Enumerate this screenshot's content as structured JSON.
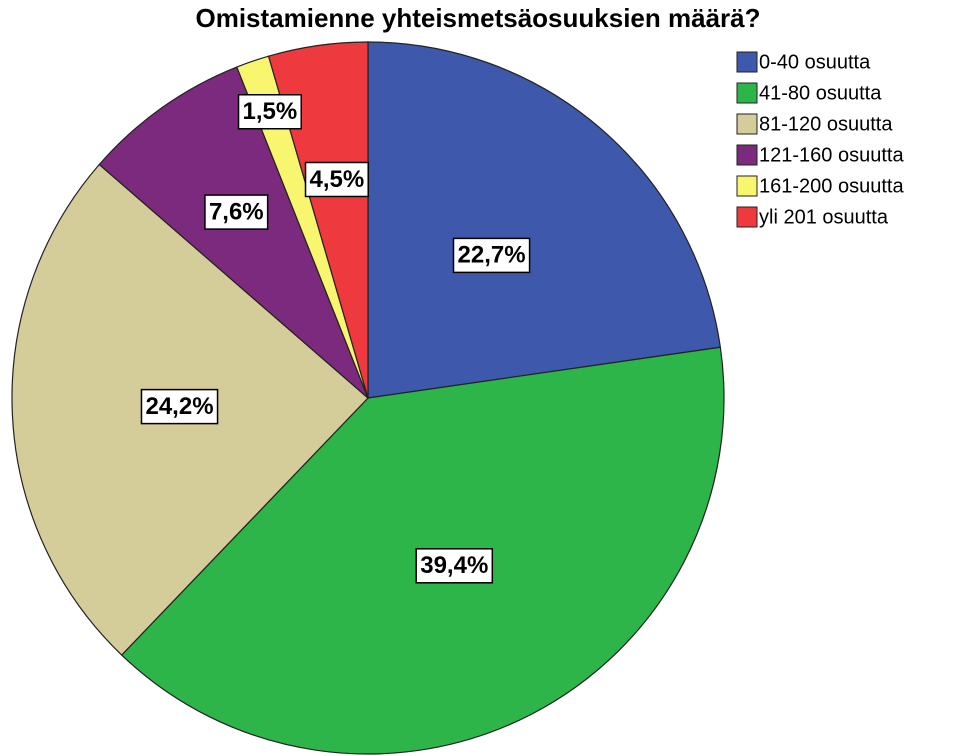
{
  "chart_data": {
    "type": "pie",
    "title": "Omistamienne yhteismetsäosuuksien määrä?",
    "categories": [
      "0-40 osuutta",
      "41-80 osuutta",
      "81-120 osuutta",
      "121-160 osuutta",
      "161-200 osuutta",
      "yli 201 osuutta"
    ],
    "values": [
      22.7,
      39.4,
      24.2,
      7.6,
      1.5,
      4.5
    ],
    "value_labels": [
      "22,7%",
      "39,4%",
      "24,2%",
      "7,6%",
      "1,5%",
      "4,5%"
    ],
    "colors": [
      "#3e58ac",
      "#2db54a",
      "#d4cc99",
      "#7c2a7e",
      "#f8f56e",
      "#ee3a3f"
    ],
    "legend": "right"
  }
}
